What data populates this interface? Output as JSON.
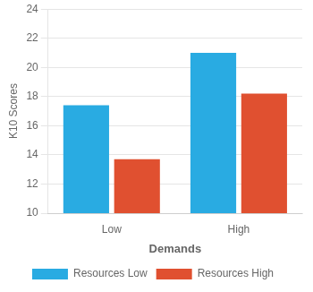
{
  "chart_data": {
    "type": "bar",
    "categories": [
      "Low",
      "High"
    ],
    "series": [
      {
        "name": "Resources Low",
        "color": "#29ABE2",
        "values": [
          17.4,
          21.0
        ]
      },
      {
        "name": "Resources High",
        "color": "#E05030",
        "values": [
          13.7,
          18.2
        ]
      }
    ],
    "xlabel": "Demands",
    "ylabel": "K10 Scores",
    "ylim": [
      10,
      24
    ],
    "yticks": [
      10,
      12,
      14,
      16,
      18,
      20,
      22,
      24
    ],
    "grid": true,
    "legend": "bottom"
  }
}
